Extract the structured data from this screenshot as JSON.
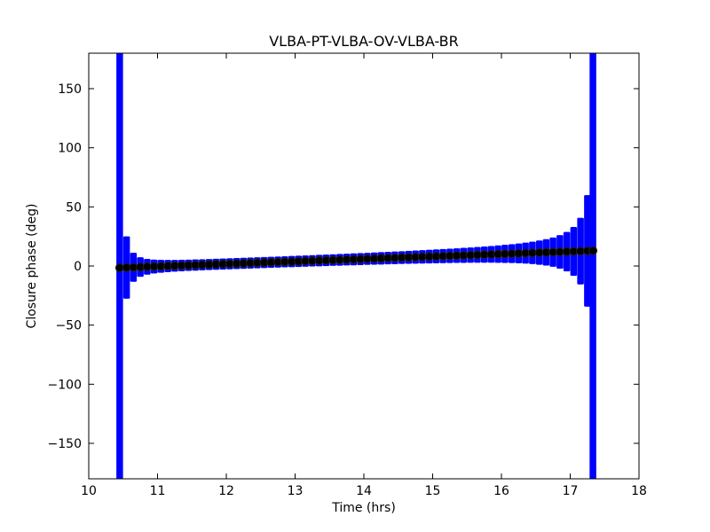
{
  "chart_data": {
    "type": "errorbar",
    "title": "VLBA-PT-VLBA-OV-VLBA-BR",
    "x_label": "Time (hrs)",
    "y_label": "Closure phase (deg)",
    "x": [
      10.45,
      10.55,
      10.65,
      10.75,
      10.85,
      10.95,
      11.05,
      11.15,
      11.25,
      11.35,
      11.45,
      11.55,
      11.65,
      11.75,
      11.85,
      11.95,
      12.05,
      12.15,
      12.25,
      12.35,
      12.45,
      12.55,
      12.65,
      12.75,
      12.85,
      12.95,
      13.05,
      13.15,
      13.25,
      13.35,
      13.45,
      13.55,
      13.65,
      13.75,
      13.85,
      13.95,
      14.05,
      14.15,
      14.25,
      14.35,
      14.45,
      14.55,
      14.65,
      14.75,
      14.85,
      14.95,
      15.05,
      15.15,
      15.25,
      15.35,
      15.45,
      15.55,
      15.65,
      15.75,
      15.85,
      15.95,
      16.05,
      16.15,
      16.25,
      16.35,
      16.45,
      16.55,
      16.65,
      16.75,
      16.85,
      16.95,
      17.05,
      17.15,
      17.25,
      17.33
    ],
    "values": [
      -1.5,
      -1.29,
      -1.08,
      -0.87,
      -0.66,
      -0.45,
      -0.24,
      -0.03,
      0.18,
      0.39,
      0.6,
      0.81,
      1.02,
      1.23,
      1.44,
      1.65,
      1.86,
      2.07,
      2.28,
      2.49,
      2.7,
      2.91,
      3.12,
      3.33,
      3.54,
      3.75,
      3.96,
      4.17,
      4.38,
      4.59,
      4.8,
      5.01,
      5.22,
      5.43,
      5.64,
      5.85,
      6.06,
      6.27,
      6.48,
      6.69,
      6.9,
      7.11,
      7.32,
      7.53,
      7.74,
      7.95,
      8.16,
      8.37,
      8.58,
      8.79,
      9,
      9.21,
      9.42,
      9.63,
      9.84,
      10.05,
      10.26,
      10.47,
      10.68,
      10.89,
      11.1,
      11.31,
      11.52,
      11.73,
      11.94,
      12.15,
      12.36,
      12.57,
      12.78,
      12.95
    ],
    "errors": [
      200,
      26,
      11.9,
      7.9,
      6.3,
      5.5,
      5.1,
      4.8,
      4.6,
      4.5,
      4.4,
      4.4,
      4.3,
      4.3,
      4.3,
      4.3,
      4.3,
      4.3,
      4.3,
      4.3,
      4.3,
      4.3,
      4.3,
      4.3,
      4.3,
      4.4,
      4.4,
      4.4,
      4.4,
      4.5,
      4.5,
      4.5,
      4.6,
      4.6,
      4.7,
      4.7,
      4.7,
      4.8,
      4.9,
      4.9,
      5.0,
      5.0,
      5.1,
      5.2,
      5.3,
      5.4,
      5.5,
      5.6,
      5.7,
      5.8,
      6.0,
      6.1,
      6.3,
      6.5,
      6.7,
      7.0,
      7.3,
      7.6,
      8.0,
      8.5,
      9.1,
      9.9,
      10.8,
      12.0,
      13.8,
      16.3,
      20.3,
      27.8,
      46.8,
      200
    ],
    "color": "#0000ff",
    "marker_color": "#000000",
    "xlim": [
      10,
      18
    ],
    "xticks": [
      10,
      11,
      12,
      13,
      14,
      15,
      16,
      17,
      18
    ],
    "ylim": [
      -180,
      180
    ],
    "yticks": [
      {
        "value": -150,
        "label": "−150"
      },
      {
        "value": -100,
        "label": "−100"
      },
      {
        "value": -50,
        "label": "−50"
      },
      0,
      50,
      100,
      150
    ],
    "grid": false
  }
}
